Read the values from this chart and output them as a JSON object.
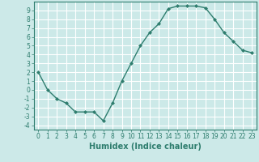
{
  "x": [
    0,
    1,
    2,
    3,
    4,
    5,
    6,
    7,
    8,
    9,
    10,
    11,
    12,
    13,
    14,
    15,
    16,
    17,
    18,
    19,
    20,
    21,
    22,
    23
  ],
  "y": [
    2,
    0,
    -1,
    -1.5,
    -2.5,
    -2.5,
    -2.5,
    -3.5,
    -1.5,
    1,
    3,
    5,
    6.5,
    7.5,
    9.2,
    9.5,
    9.5,
    9.5,
    9.3,
    8,
    6.5,
    5.5,
    4.5,
    4.2
  ],
  "line_color": "#2e7d6e",
  "marker": "D",
  "marker_size": 2,
  "bg_color": "#cce9e8",
  "grid_color": "#ffffff",
  "grid_minor_color": "#e8f5f5",
  "xlabel": "Humidex (Indice chaleur)",
  "xlabel_fontsize": 7,
  "xlim": [
    -0.5,
    23.5
  ],
  "ylim": [
    -4.5,
    10.0
  ],
  "yticks": [
    -4,
    -3,
    -2,
    -1,
    0,
    1,
    2,
    3,
    4,
    5,
    6,
    7,
    8,
    9
  ],
  "xticks": [
    0,
    1,
    2,
    3,
    4,
    5,
    6,
    7,
    8,
    9,
    10,
    11,
    12,
    13,
    14,
    15,
    16,
    17,
    18,
    19,
    20,
    21,
    22,
    23
  ],
  "tick_fontsize": 5.5,
  "line_width": 1.0
}
